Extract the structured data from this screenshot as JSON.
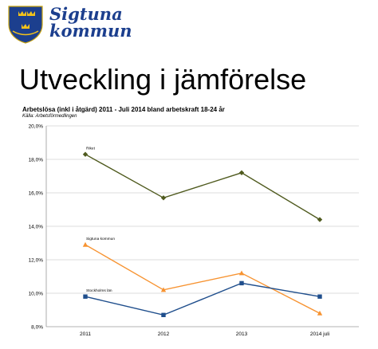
{
  "logo": {
    "line1": "Sigtuna",
    "line2": "kommun",
    "colors": {
      "shield": "#1c3f8e",
      "crowns": "#f2c21b",
      "text": "#1c3f8e"
    }
  },
  "headline": "Utveckling i jämförelse",
  "chart_data": {
    "type": "line",
    "title": "Arbetslösa (inkl  i åtgärd) 2011 - Juli 2014 bland arbetskraft 18-24 år",
    "subtitle": "Källa: Arbetsförmedlingen",
    "categories": [
      "2011",
      "2012",
      "2013",
      "2014  juli"
    ],
    "ylim": [
      8,
      20
    ],
    "ytick_labels": [
      "8,0%",
      "10,0%",
      "12,0%",
      "14,0%",
      "16,0%",
      "18,0%",
      "20,0%"
    ],
    "grid": true,
    "series": [
      {
        "name": "Riket",
        "values": [
          18.3,
          15.7,
          17.2,
          14.4
        ],
        "color": "#4f5a1e",
        "marker": "diamond"
      },
      {
        "name": "Sigtuna kommun",
        "values": [
          12.9,
          10.2,
          11.2,
          8.8
        ],
        "color": "#f79331",
        "marker": "triangle"
      },
      {
        "name": "Stockholms län",
        "values": [
          9.8,
          8.7,
          10.6,
          9.8
        ],
        "color": "#1f4e8c",
        "marker": "square"
      }
    ]
  }
}
